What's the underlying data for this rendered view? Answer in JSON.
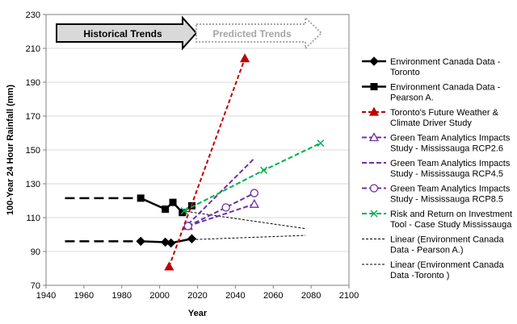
{
  "chart_data": {
    "type": "line",
    "xlabel": "Year",
    "ylabel": "100-Year 24 Hour Rainfall (mm)",
    "xlim": [
      1940,
      2100
    ],
    "ylim": [
      70,
      230
    ],
    "xticks": [
      "1940",
      "1960",
      "1980",
      "2000",
      "2020",
      "2040",
      "2060",
      "2080",
      "2100"
    ],
    "yticks": [
      "70",
      "90",
      "110",
      "130",
      "150",
      "170",
      "190",
      "210",
      "230"
    ],
    "grid": "horizontal",
    "legend_position": "right",
    "annotations": {
      "historical": "Historical Trends",
      "predicted": "Predicted Trends"
    },
    "colors": {
      "black": "#000000",
      "red": "#c00000",
      "purple": "#7030a0",
      "green": "#00b050",
      "grid": "#d9d9d9",
      "historical_fill": "#d9d9d9",
      "predicted_arrow": "#a6a6a6"
    },
    "series": [
      {
        "name": "Environment Canada Data - Toronto",
        "legend_lines": [
          "Environment Canada Data -",
          "Toronto"
        ],
        "style": "solid-black-diamond",
        "points": [
          [
            1950,
            96
          ],
          [
            1990,
            96
          ],
          [
            2003,
            95.5
          ],
          [
            2006,
            95
          ],
          [
            2017,
            97.5
          ]
        ]
      },
      {
        "name": "Environment Canada Data - Pearson A.",
        "legend_lines": [
          "Environment Canada Data -",
          "Pearson A."
        ],
        "style": "solid-black-square",
        "points": [
          [
            1950,
            121.5
          ],
          [
            1990,
            121.5
          ],
          [
            2003,
            115
          ],
          [
            2007,
            119
          ],
          [
            2012,
            113
          ],
          [
            2017,
            117
          ]
        ]
      },
      {
        "name": "Toronto's Future Weather & Climate Driver Study",
        "legend_lines": [
          "Toronto's Future Weather &",
          "Climate Driver Study"
        ],
        "style": "dashed-red-triangle",
        "points": [
          [
            2005,
            81
          ],
          [
            2045,
            204
          ]
        ]
      },
      {
        "name": "Green Team Analytics Impacts Study - Mississauga RCP2.6",
        "legend_lines": [
          "Green Team Analytics Impacts",
          "Study - Mississauga  RCP2.6"
        ],
        "style": "dashed-purple-triangle-open",
        "points": [
          [
            2015,
            105
          ],
          [
            2050,
            118
          ]
        ]
      },
      {
        "name": "Green Team Analytics Impacts Study - Mississauga RCP4.5",
        "legend_lines": [
          "Green Team Analytics Impacts",
          "Study - Mississauga  RCP4.5"
        ],
        "style": "dashed-purple-none",
        "points": [
          [
            2015,
            106
          ],
          [
            2050,
            145
          ]
        ]
      },
      {
        "name": "Green Team Analytics Impacts Study - Mississauga RCP8.5",
        "legend_lines": [
          "Green Team Analytics Impacts",
          "Study - Mississauga  RCP8.5"
        ],
        "style": "dashed-purple-circle-open",
        "points": [
          [
            2015,
            105
          ],
          [
            2035,
            116
          ],
          [
            2050,
            124.5
          ]
        ]
      },
      {
        "name": "Risk and Return on Investment Tool - Case Study Mississauga",
        "legend_lines": [
          "Risk and Return on Investment",
          "Tool - Case Study Mississauga"
        ],
        "style": "dashed-green-x",
        "points": [
          [
            2013,
            114
          ],
          [
            2055,
            138
          ],
          [
            2085,
            154
          ]
        ]
      },
      {
        "name": "Linear (Environment Canada Data - Pearson A.)",
        "legend_lines": [
          "Linear (Environment Canada",
          "Data - Pearson A.)"
        ],
        "style": "dashed-black-thin",
        "points": [
          [
            2012,
            114
          ],
          [
            2077,
            103.5
          ]
        ]
      },
      {
        "name": "Linear (Environment Canada Data -Toronto )",
        "legend_lines": [
          "Linear (Environment Canada",
          "Data -Toronto )"
        ],
        "style": "dashed-black-thin",
        "points": [
          [
            2017,
            97
          ],
          [
            2077,
            99.5
          ]
        ]
      }
    ]
  }
}
